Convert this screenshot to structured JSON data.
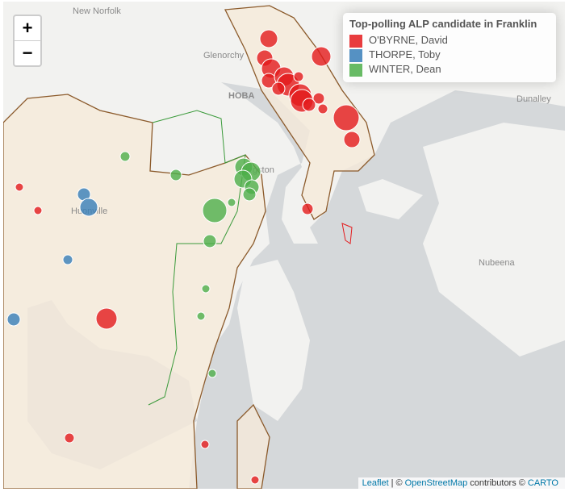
{
  "map": {
    "place_labels": [
      "New Norfolk",
      "Glenorchy",
      "HOBA",
      "Dunalley",
      "Nubeena",
      "Huonville",
      "Kingston"
    ],
    "zoom": {
      "in": "+",
      "out": "−"
    },
    "legend": {
      "title": "Top-polling ALP candidate in Franklin",
      "items": [
        {
          "name": "O'BYRNE, David",
          "color": "#e41a1c"
        },
        {
          "name": "THORPE, Toby",
          "color": "#377eb8"
        },
        {
          "name": "WINTER, Dean",
          "color": "#4daf4a"
        }
      ]
    },
    "attribution": [
      "Leaflet",
      "|",
      "©",
      "OpenStreetMap",
      "contributors ©",
      "CARTO"
    ]
  }
}
